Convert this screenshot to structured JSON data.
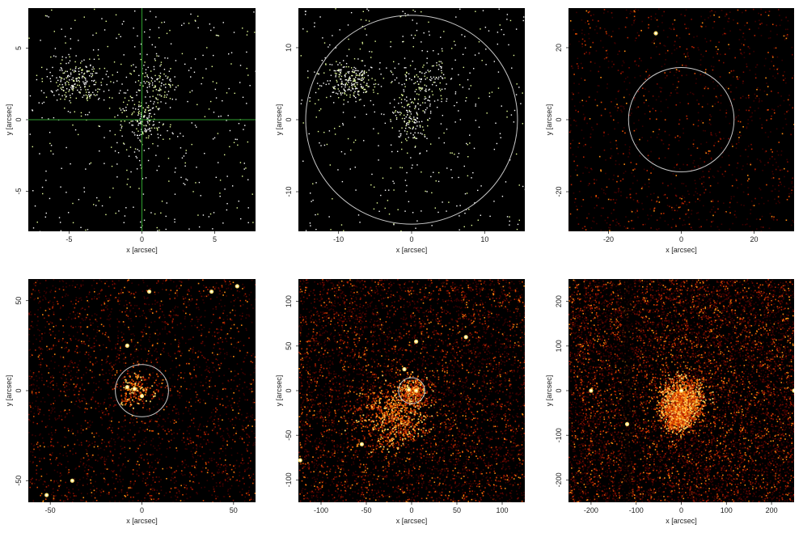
{
  "chart_data": [
    {
      "type": "heatmap",
      "xlabel": "x [arcsec]",
      "ylabel": "y [arcsec]",
      "xlim": [
        -7.8,
        7.8
      ],
      "ylim": [
        -7.8,
        7.8
      ],
      "xticks": [
        -5,
        0,
        5
      ],
      "yticks": [
        -5,
        0,
        5
      ],
      "style": "points",
      "crosshair": true,
      "circle_radius": null,
      "sources": [],
      "diffuse": []
    },
    {
      "type": "heatmap",
      "xlabel": "x [arcsec]",
      "ylabel": "y [arcsec]",
      "xlim": [
        -15.5,
        15.5
      ],
      "ylim": [
        -15.5,
        15.5
      ],
      "xticks": [
        -10,
        0,
        10
      ],
      "yticks": [
        -10,
        0,
        10
      ],
      "style": "points",
      "crosshair": false,
      "circle_radius": 14.5,
      "sources": [],
      "diffuse": []
    },
    {
      "type": "heatmap",
      "xlabel": "x [arcsec]",
      "ylabel": "y [arcsec]",
      "xlim": [
        -31,
        31
      ],
      "ylim": [
        -31,
        31
      ],
      "xticks": [
        -20,
        0,
        20
      ],
      "yticks": [
        -20,
        0,
        20
      ],
      "style": "counts",
      "crosshair": false,
      "circle_radius": 14.5,
      "sources": [
        {
          "x": -7,
          "y": 24
        }
      ],
      "diffuse": []
    },
    {
      "type": "heatmap",
      "xlabel": "x [arcsec]",
      "ylabel": "y [arcsec]",
      "xlim": [
        -62,
        62
      ],
      "ylim": [
        -62,
        62
      ],
      "xticks": [
        -50,
        0,
        50
      ],
      "yticks": [
        -50,
        0,
        50
      ],
      "style": "counts",
      "crosshair": false,
      "circle_radius": 14.5,
      "sources": [
        {
          "x": -8,
          "y": 25
        },
        {
          "x": 4,
          "y": 55
        },
        {
          "x": 38,
          "y": 55
        },
        {
          "x": 52,
          "y": 58
        },
        {
          "x": -4,
          "y": 1
        },
        {
          "x": -8,
          "y": 2
        },
        {
          "x": 0,
          "y": -3
        },
        {
          "x": -52,
          "y": -58
        },
        {
          "x": -38,
          "y": -50
        }
      ],
      "diffuse": [
        {
          "x": -3,
          "y": 1,
          "r": 8
        }
      ]
    },
    {
      "type": "heatmap",
      "xlabel": "x [arcsec]",
      "ylabel": "y [arcsec]",
      "xlim": [
        -125,
        125
      ],
      "ylim": [
        -125,
        125
      ],
      "xticks": [
        -100,
        -50,
        0,
        50,
        100
      ],
      "yticks": [
        -100,
        -50,
        0,
        50,
        100
      ],
      "style": "counts",
      "crosshair": false,
      "circle_radius": 14.5,
      "sources": [
        {
          "x": -3,
          "y": 1
        },
        {
          "x": 5,
          "y": 0
        },
        {
          "x": -8,
          "y": 24
        },
        {
          "x": 5,
          "y": 55
        },
        {
          "x": -123,
          "y": -78
        },
        {
          "x": -55,
          "y": -60
        },
        {
          "x": 60,
          "y": 60
        }
      ],
      "diffuse": [
        {
          "x": 0,
          "y": 0,
          "r": 14
        },
        {
          "x": -20,
          "y": -30,
          "r": 30
        }
      ]
    },
    {
      "type": "heatmap",
      "xlabel": "x [arcsec]",
      "ylabel": "y [arcsec]",
      "xlim": [
        -250,
        250
      ],
      "ylim": [
        -250,
        250
      ],
      "xticks": [
        -200,
        -100,
        0,
        100,
        200
      ],
      "yticks": [
        -200,
        -100,
        0,
        100,
        200
      ],
      "style": "counts",
      "crosshair": false,
      "circle_radius": null,
      "sources": [
        {
          "x": 0,
          "y": 0
        },
        {
          "x": -120,
          "y": -75
        },
        {
          "x": 250,
          "y": 0
        },
        {
          "x": -200,
          "y": 0
        }
      ],
      "diffuse": [
        {
          "x": 0,
          "y": -20,
          "r": 40
        },
        {
          "x": -10,
          "y": -60,
          "r": 25
        }
      ]
    }
  ]
}
